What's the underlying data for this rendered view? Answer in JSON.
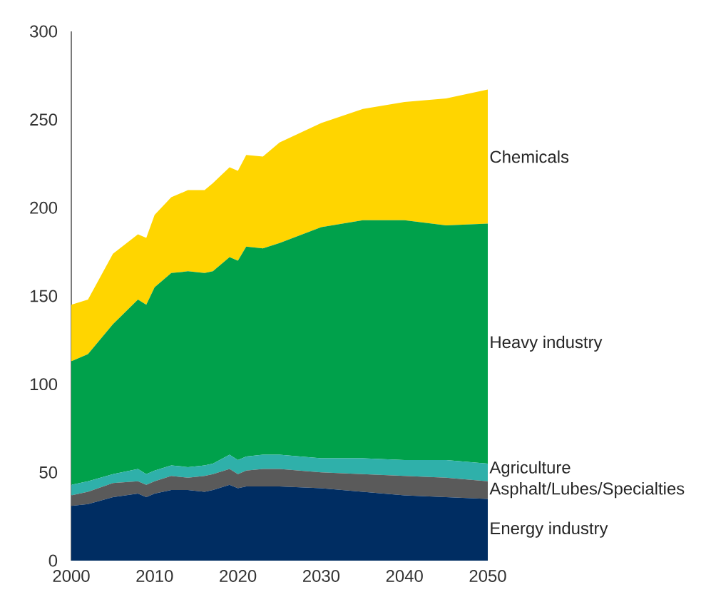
{
  "chart_data": {
    "type": "area",
    "stacked": true,
    "x": [
      2000,
      2002,
      2005,
      2008,
      2009,
      2010,
      2012,
      2014,
      2016,
      2017,
      2019,
      2020,
      2021,
      2023,
      2025,
      2030,
      2035,
      2040,
      2045,
      2050
    ],
    "series": [
      {
        "name": "Energy industry",
        "color": "#002d62",
        "values": [
          31,
          32,
          36,
          38,
          36,
          38,
          40,
          40,
          39,
          40,
          43,
          41,
          42,
          42,
          42,
          41,
          39,
          37,
          36,
          35
        ]
      },
      {
        "name": "Asphalt/Lubes/Specialties",
        "color": "#5a5a5a",
        "values": [
          6,
          7,
          8,
          7,
          7,
          7,
          8,
          7,
          9,
          9,
          9,
          8,
          9,
          10,
          10,
          9,
          10,
          11,
          11,
          10
        ]
      },
      {
        "name": "Agriculture",
        "color": "#2fb0aa",
        "values": [
          6,
          6,
          5,
          7,
          6,
          6,
          6,
          6,
          6,
          6,
          8,
          8,
          8,
          8,
          8,
          8,
          9,
          9,
          10,
          10
        ]
      },
      {
        "name": "Heavy industry",
        "color": "#00a14b",
        "values": [
          70,
          72,
          85,
          96,
          96,
          104,
          109,
          111,
          109,
          109,
          112,
          113,
          119,
          117,
          120,
          131,
          135,
          136,
          133,
          136
        ]
      },
      {
        "name": "Chemicals",
        "color": "#ffd500",
        "values": [
          32,
          31,
          40,
          37,
          38,
          41,
          43,
          46,
          47,
          50,
          51,
          51,
          52,
          52,
          57,
          59,
          63,
          67,
          72,
          76
        ]
      }
    ],
    "xlim": [
      2000,
      2050
    ],
    "ylim": [
      0,
      300
    ],
    "xticks": [
      2000,
      2010,
      2020,
      2030,
      2040,
      2050
    ],
    "yticks": [
      0,
      50,
      100,
      150,
      200,
      250,
      300
    ]
  }
}
